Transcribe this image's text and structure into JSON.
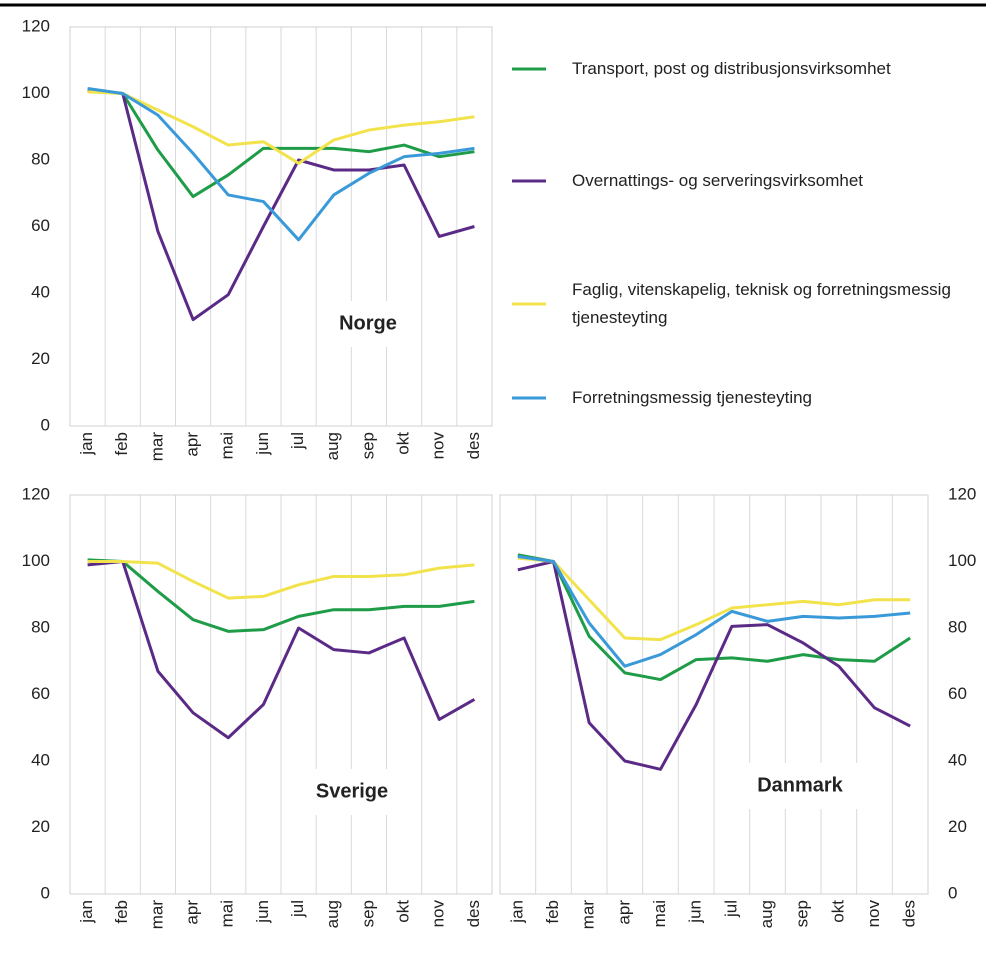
{
  "chart_data": [
    {
      "type": "line",
      "title": "Norge",
      "categories": [
        "jan",
        "feb",
        "mar",
        "apr",
        "mai",
        "jun",
        "jul",
        "aug",
        "sep",
        "okt",
        "nov",
        "des"
      ],
      "ylim": [
        0,
        120
      ],
      "yticks": [
        0,
        20,
        40,
        60,
        80,
        100,
        120
      ],
      "series": [
        {
          "name": "Transport, post og distribusjonsvirksomhet",
          "color": "#1e9c48",
          "values": [
            101,
            100,
            83,
            69,
            75.5,
            83.5,
            83.5,
            83.5,
            82.5,
            84.5,
            81,
            82.5
          ]
        },
        {
          "name": "Overnattings- og serveringsvirksomhet",
          "color": "#5b2a86",
          "values": [
            101,
            100,
            58.5,
            32,
            39.5,
            60,
            80,
            77,
            77,
            78.5,
            57,
            60
          ]
        },
        {
          "name": "Faglig, vitenskapelig, teknisk og forretningsmessig tjenesteyting",
          "color": "#f2e34c",
          "values": [
            100.5,
            100,
            95,
            90,
            84.5,
            85.5,
            79,
            86,
            89,
            90.5,
            91.5,
            93
          ]
        },
        {
          "name": "Forretningsmessig tjenesteyting",
          "color": "#3a9ad9",
          "values": [
            101.5,
            100,
            93.5,
            82,
            69.5,
            67.5,
            56,
            69.5,
            76,
            81,
            82,
            83.5
          ]
        }
      ]
    },
    {
      "type": "line",
      "title": "Sverige",
      "categories": [
        "jan",
        "feb",
        "mar",
        "apr",
        "mai",
        "jun",
        "jul",
        "aug",
        "sep",
        "okt",
        "nov",
        "des"
      ],
      "ylim": [
        0,
        120
      ],
      "yticks": [
        0,
        20,
        40,
        60,
        80,
        100,
        120
      ],
      "series": [
        {
          "color": "#1e9c48",
          "values": [
            100.5,
            100,
            91,
            82.5,
            79,
            79.5,
            83.5,
            85.5,
            85.5,
            86.5,
            86.5,
            88
          ]
        },
        {
          "color": "#5b2a86",
          "values": [
            99,
            100,
            67,
            54.5,
            47,
            57,
            80,
            73.5,
            72.5,
            77,
            52.5,
            58.5
          ]
        },
        {
          "color": "#f2e34c",
          "values": [
            100,
            100,
            99.5,
            94,
            89,
            89.5,
            93,
            95.5,
            95.5,
            96,
            98,
            99
          ]
        }
      ]
    },
    {
      "type": "line",
      "title": "Danmark",
      "yaxis_side": "right",
      "categories": [
        "jan",
        "feb",
        "mar",
        "apr",
        "mai",
        "jun",
        "jul",
        "aug",
        "sep",
        "okt",
        "nov",
        "des"
      ],
      "ylim": [
        0,
        120
      ],
      "yticks": [
        0,
        20,
        40,
        60,
        80,
        100,
        120
      ],
      "series": [
        {
          "color": "#1e9c48",
          "values": [
            102,
            100,
            77.5,
            66.5,
            64.5,
            70.5,
            71,
            70,
            72,
            70.5,
            70,
            77
          ]
        },
        {
          "color": "#5b2a86",
          "values": [
            97.5,
            100,
            51.5,
            40,
            37.5,
            57,
            80.5,
            81,
            75.5,
            68.5,
            56,
            50.5
          ]
        },
        {
          "color": "#f2e34c",
          "values": [
            101,
            100,
            88.5,
            77,
            76.5,
            81,
            86,
            87,
            88,
            87,
            88.5,
            88.5
          ]
        },
        {
          "color": "#3a9ad9",
          "values": [
            101.5,
            100,
            81.5,
            68.5,
            72,
            78,
            85,
            82,
            83.5,
            83,
            83.5,
            84.5
          ]
        }
      ]
    }
  ]
}
